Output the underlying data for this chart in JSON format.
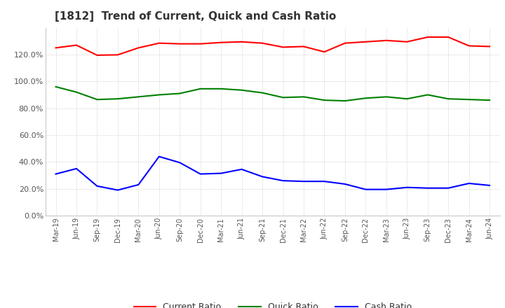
{
  "title": "[1812]  Trend of Current, Quick and Cash Ratio",
  "title_fontsize": 11,
  "title_color": "#333333",
  "background_color": "#ffffff",
  "plot_background_color": "#ffffff",
  "grid_color": "#aaaaaa",
  "x_labels": [
    "Mar-19",
    "Jun-19",
    "Sep-19",
    "Dec-19",
    "Mar-20",
    "Jun-20",
    "Sep-20",
    "Dec-20",
    "Mar-21",
    "Jun-21",
    "Sep-21",
    "Dec-21",
    "Mar-22",
    "Jun-22",
    "Sep-22",
    "Dec-22",
    "Mar-23",
    "Jun-23",
    "Sep-23",
    "Dec-23",
    "Mar-24",
    "Jun-24"
  ],
  "current_ratio": [
    125.0,
    127.0,
    119.5,
    119.8,
    125.0,
    128.5,
    128.0,
    128.0,
    129.0,
    129.5,
    128.5,
    125.5,
    126.0,
    122.0,
    128.5,
    129.5,
    130.5,
    129.5,
    133.0,
    133.0,
    126.5,
    126.0
  ],
  "quick_ratio": [
    96.0,
    92.0,
    86.5,
    87.0,
    88.5,
    90.0,
    91.0,
    94.5,
    94.5,
    93.5,
    91.5,
    88.0,
    88.5,
    86.0,
    85.5,
    87.5,
    88.5,
    87.0,
    90.0,
    87.0,
    86.5,
    86.0
  ],
  "cash_ratio": [
    31.0,
    35.0,
    22.0,
    19.0,
    23.0,
    44.0,
    39.5,
    31.0,
    31.5,
    34.5,
    29.0,
    26.0,
    25.5,
    25.5,
    23.5,
    19.5,
    19.5,
    21.0,
    20.5,
    20.5,
    24.0,
    22.5
  ],
  "current_color": "#ff0000",
  "quick_color": "#008000",
  "cash_color": "#0000ff",
  "line_width": 1.5,
  "ylim": [
    0,
    140
  ],
  "ytick_values": [
    0,
    20,
    40,
    60,
    80,
    100,
    120
  ],
  "legend_labels": [
    "Current Ratio",
    "Quick Ratio",
    "Cash Ratio"
  ]
}
